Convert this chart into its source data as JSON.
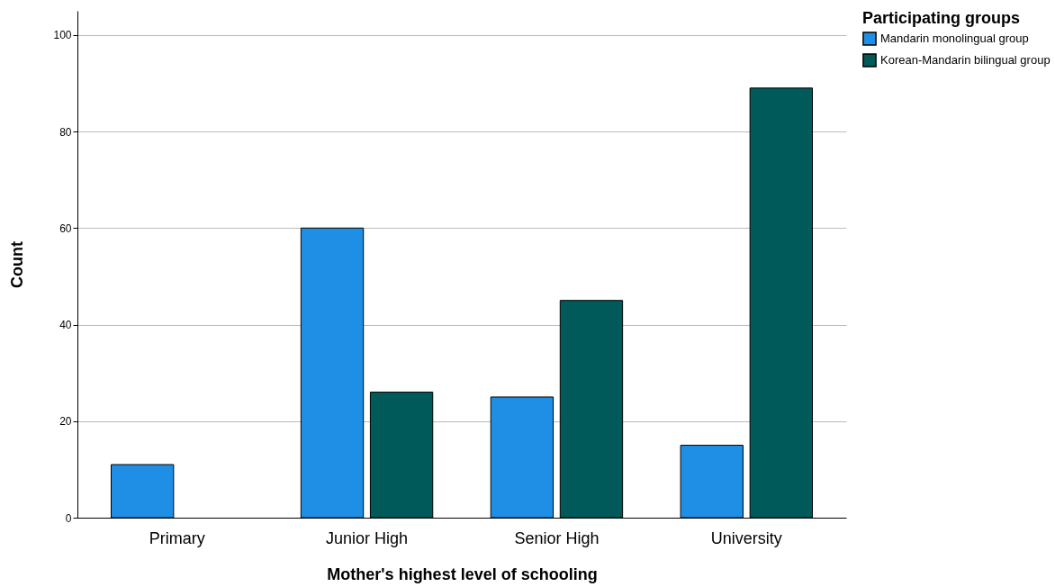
{
  "chart_data": {
    "type": "bar",
    "xlabel": "Mother's highest level of schooling",
    "ylabel": "Count",
    "legend_title": "Participating groups",
    "categories": [
      "Primary",
      "Junior High",
      "Senior High",
      "University"
    ],
    "series": [
      {
        "name": "Mandarin monolingual group",
        "color": "#1f8fe5",
        "values": [
          11,
          60,
          25,
          15
        ]
      },
      {
        "name": "Korean-Mandarin bilingual group",
        "color": "#005a5a",
        "values": [
          null,
          26,
          45,
          89
        ]
      }
    ],
    "ylim": [
      0,
      105
    ],
    "yticks": [
      0,
      20,
      40,
      60,
      80,
      100
    ],
    "grid": "y",
    "legend": "top right"
  }
}
